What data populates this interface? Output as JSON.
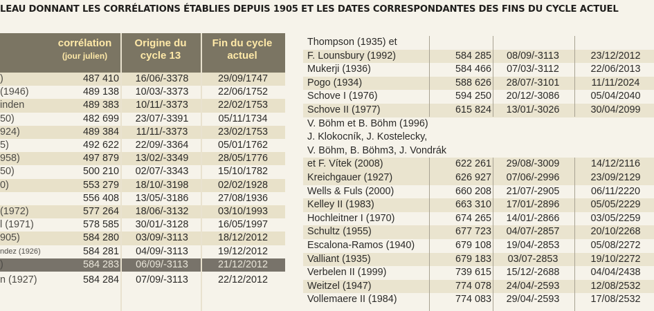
{
  "caption": "LEAU DONNANT  LES CORRÉLATIONS ÉTABLIES DEPUIS 1905 ET LES DATES CORRESPONDANTES DES FINS DU CYCLE ACTUEL",
  "left": {
    "headers": {
      "correlation": "corrélation",
      "correlation_sub": "(jour julien)",
      "origin_line1": "Origine du",
      "origin_line2": "cycle 13",
      "end_line1": "Fin du cycle",
      "end_line2": "actuel"
    },
    "rows": [
      {
        "name": ")",
        "correlation": "487 410",
        "origin": "16/06/-3378",
        "end": "29/09/1747"
      },
      {
        "name": "(1946)",
        "correlation": "489 138",
        "origin": "10/03/-3373",
        "end": "22/06/1752"
      },
      {
        "name": "inden",
        "correlation": "489 383",
        "origin": "10/11/-3373",
        "end": "22/02/1753"
      },
      {
        "name": "50)",
        "correlation": "482 699",
        "origin": "23/07/-3391",
        "end": "05/11/1734"
      },
      {
        "name": "924)",
        "correlation": "489 384",
        "origin": "11/11/-3373",
        "end": "23/02/1753"
      },
      {
        "name": "5)",
        "correlation": "492 622",
        "origin": "22/09/-3364",
        "end": "05/01/1762"
      },
      {
        "name": "958)",
        "correlation": "497 879",
        "origin": "13/02/-3349",
        "end": "28/05/1776"
      },
      {
        "name": "50)",
        "correlation": "500 210",
        "origin": "02/07/-3343",
        "end": "15/10/1782"
      },
      {
        "name": "0)",
        "correlation": "553 279",
        "origin": "18/10/-3198",
        "end": "02/02/1928"
      },
      {
        "name": "",
        "correlation": "556 408",
        "origin": "13/05/-3186",
        "end": "27/08/1936"
      },
      {
        "name": "(1972)",
        "correlation": "577 264",
        "origin": "18/06/-3132",
        "end": "03/10/1993"
      },
      {
        "name": "l (1971)",
        "correlation": "578 585",
        "origin": "30/01/-3128",
        "end": "16/05/1997"
      },
      {
        "name": "905)",
        "correlation": "584 280",
        "origin": "03/09/-3113",
        "end": "18/12/2012"
      },
      {
        "name": "ndez (1926)",
        "correlation": "584 281",
        "origin": "04/09/-3113",
        "end": "19/12/2012"
      },
      {
        "name": ")",
        "correlation": "584 283",
        "origin": "06/09/-3113",
        "end": "21/12/2012"
      },
      {
        "name": "n (1927)",
        "correlation": "584 284",
        "origin": "07/09/-3113",
        "end": "22/12/2012"
      }
    ]
  },
  "right": {
    "rows": [
      {
        "name": "Thompson (1935) et",
        "correlation": "",
        "origin": "",
        "end": ""
      },
      {
        "name": "F. Lounsbury (1992)",
        "correlation": "584 285",
        "origin": "08/09/-3113",
        "end": "23/12/2012"
      },
      {
        "name": "Mukerji (1936)",
        "correlation": "584 466",
        "origin": "07/03/-3112",
        "end": "22/06/2013"
      },
      {
        "name": "Pogo (1934)",
        "correlation": "588 626",
        "origin": "28/07/-3101",
        "end": "11/11/2024"
      },
      {
        "name": "Schove I (1976)",
        "correlation": "594 250",
        "origin": "20/12/-3086",
        "end": "05/04/2040"
      },
      {
        "name": "Schove II (1977)",
        "correlation": "615 824",
        "origin": "13/01/-3026",
        "end": "30/04/2099"
      },
      {
        "name": "V. Böhm et B. Böhm (1996)",
        "correlation": "",
        "origin": "",
        "end": ""
      },
      {
        "name": "J. Klokocník, J. Kostelecky,",
        "correlation": "",
        "origin": "",
        "end": ""
      },
      {
        "name": "V. Böhm, B. Böhm3, J. Vondrák",
        "correlation": "",
        "origin": "",
        "end": ""
      },
      {
        "name": "et F. Vítek (2008)",
        "correlation": "622 261",
        "origin": "29/08/-3009",
        "end": "14/12/2116"
      },
      {
        "name": "Kreichgauer (1927)",
        "correlation": "626 927",
        "origin": "07/06/-2996",
        "end": "23/09/2129"
      },
      {
        "name": "Wells & Fuls (2000)",
        "correlation": "660 208",
        "origin": "21/07/-2905",
        "end": "06/11/2220"
      },
      {
        "name": "Kelley II (1983)",
        "correlation": "663 310",
        "origin": "17/01/-2896",
        "end": "05/05/2229"
      },
      {
        "name": "Hochleitner I (1970)",
        "correlation": "674 265",
        "origin": "14/01/-2866",
        "end": "03/05/2259"
      },
      {
        "name": "Schultz (1955)",
        "correlation": "677 723",
        "origin": "04/07/-2857",
        "end": "20/10/2268"
      },
      {
        "name": "Escalona-Ramos (1940)",
        "correlation": "679 108",
        "origin": "19/04/-2853",
        "end": "05/08/2272"
      },
      {
        "name": "Valliant (1935)",
        "correlation": "679 183",
        "origin": "03/07-2853",
        "end": "19/10/2272"
      },
      {
        "name": "Verbelen II (1999)",
        "correlation": "739 615",
        "origin": "15/12/-2688",
        "end": "04/04/2438"
      },
      {
        "name": "Weitzel (1947)",
        "correlation": "774 078",
        "origin": "24/04/-2593",
        "end": "12/08/2532"
      },
      {
        "name": "Vollemaere II (1984)",
        "correlation": "774 083",
        "origin": "29/04/-2593",
        "end": "17/08/2532"
      }
    ]
  }
}
